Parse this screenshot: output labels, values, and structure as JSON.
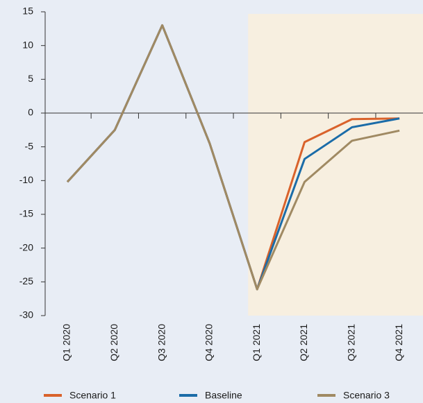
{
  "chart_data": {
    "type": "line",
    "categories": [
      "Q1 2020",
      "Q2 2020",
      "Q3 2020",
      "Q4 2020",
      "Q1 2021",
      "Q2 2021",
      "Q3 2021",
      "Q4 2021"
    ],
    "series": [
      {
        "name": "Scenario 1",
        "color": "#d9622b",
        "values": [
          -10.2,
          -2.5,
          13.0,
          -4.5,
          -26.1,
          -4.3,
          -0.9,
          -0.8
        ]
      },
      {
        "name": "Baseline",
        "color": "#1b6ca8",
        "values": [
          -10.2,
          -2.5,
          13.0,
          -4.5,
          -26.1,
          -6.8,
          -2.1,
          -0.8
        ]
      },
      {
        "name": "Scenario 3",
        "color": "#a08a63",
        "values": [
          -10.2,
          -2.5,
          13.0,
          -4.5,
          -26.1,
          -10.2,
          -4.1,
          -2.6
        ]
      }
    ],
    "ylim": [
      -30,
      15
    ],
    "yticks": [
      15,
      10,
      5,
      0,
      -5,
      -10,
      -15,
      -20,
      -25,
      -30
    ]
  }
}
